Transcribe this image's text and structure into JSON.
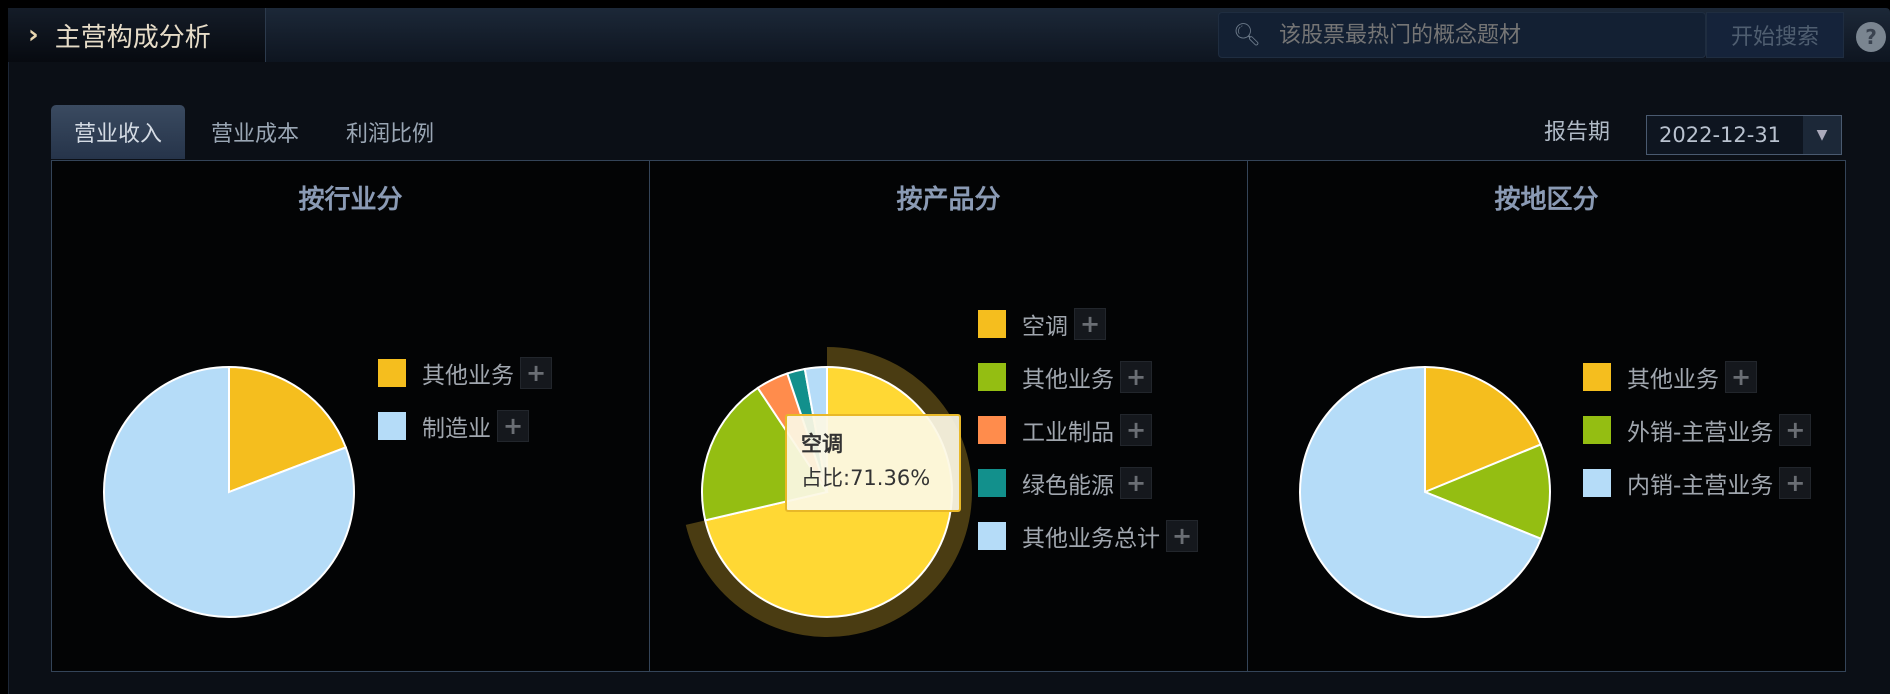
{
  "header": {
    "title": "主营构成分析",
    "search_placeholder": "该股票最热门的概念题材",
    "search_button": "开始搜索",
    "help_icon": "question-circle-icon"
  },
  "tabs": [
    {
      "label": "营业收入",
      "active": true
    },
    {
      "label": "营业成本"
    },
    {
      "label": "利润比例"
    }
  ],
  "report_period": {
    "label": "报告期",
    "value": "2022-12-31"
  },
  "chart_data": [
    {
      "type": "pie",
      "title": "按行业分",
      "categories": [
        "其他业务",
        "制造业"
      ],
      "values": [
        19.2,
        80.8
      ],
      "colors": [
        "#f5be1e",
        "#b5dcf8"
      ],
      "legend": "right"
    },
    {
      "type": "pie",
      "title": "按产品分",
      "categories": [
        "空调",
        "其他业务",
        "工业制品",
        "绿色能源",
        "其他业务总计"
      ],
      "values": [
        71.36,
        19.3,
        4.2,
        2.3,
        2.84
      ],
      "colors": [
        "#f5be1e",
        "#94be12",
        "#ff8c4c",
        "#12908c",
        "#b5dcf8"
      ],
      "legend": "right",
      "highlighted": "空调",
      "tooltip": {
        "name": "空调",
        "text": "占比:71.36%"
      }
    },
    {
      "type": "pie",
      "title": "按地区分",
      "categories": [
        "其他业务",
        "外销-主营业务",
        "内销-主营业务"
      ],
      "values": [
        18.8,
        12.3,
        68.9
      ],
      "colors": [
        "#f5be1e",
        "#94be12",
        "#b5dcf8"
      ],
      "legend": "right"
    }
  ]
}
